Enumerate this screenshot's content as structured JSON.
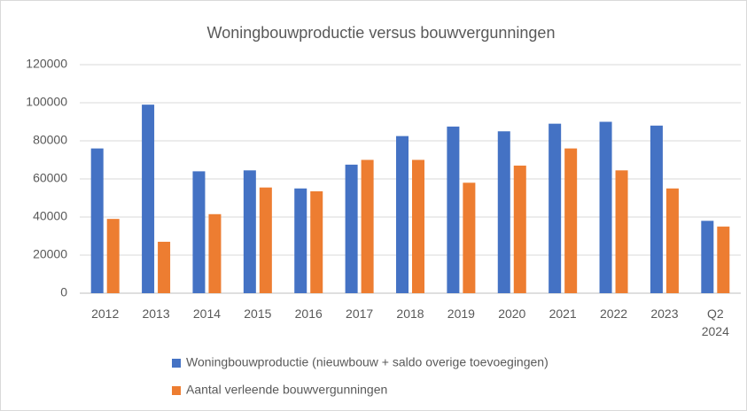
{
  "chart_data": {
    "type": "bar",
    "title": "Woningbouwproductie versus bouwvergunningen",
    "categories": [
      "2012",
      "2013",
      "2014",
      "2015",
      "2016",
      "2017",
      "2018",
      "2019",
      "2020",
      "2021",
      "2022",
      "2023",
      "Q2 2024"
    ],
    "series": [
      {
        "name": "Woningbouwproductie (nieuwbouw + saldo overige toevoegingen)",
        "color": "#4472c4",
        "values": [
          76000,
          99000,
          64000,
          64500,
          55000,
          67500,
          82500,
          87500,
          85000,
          89000,
          90000,
          88000,
          38000
        ]
      },
      {
        "name": "Aantal verleende bouwvergunningen",
        "color": "#ed7d31",
        "values": [
          39000,
          27000,
          41500,
          55500,
          53500,
          70000,
          70000,
          58000,
          67000,
          76000,
          64500,
          55000,
          35000
        ]
      }
    ],
    "ylim": [
      0,
      120000
    ],
    "yticks": [
      0,
      20000,
      40000,
      60000,
      80000,
      100000,
      120000
    ],
    "grid": true
  }
}
